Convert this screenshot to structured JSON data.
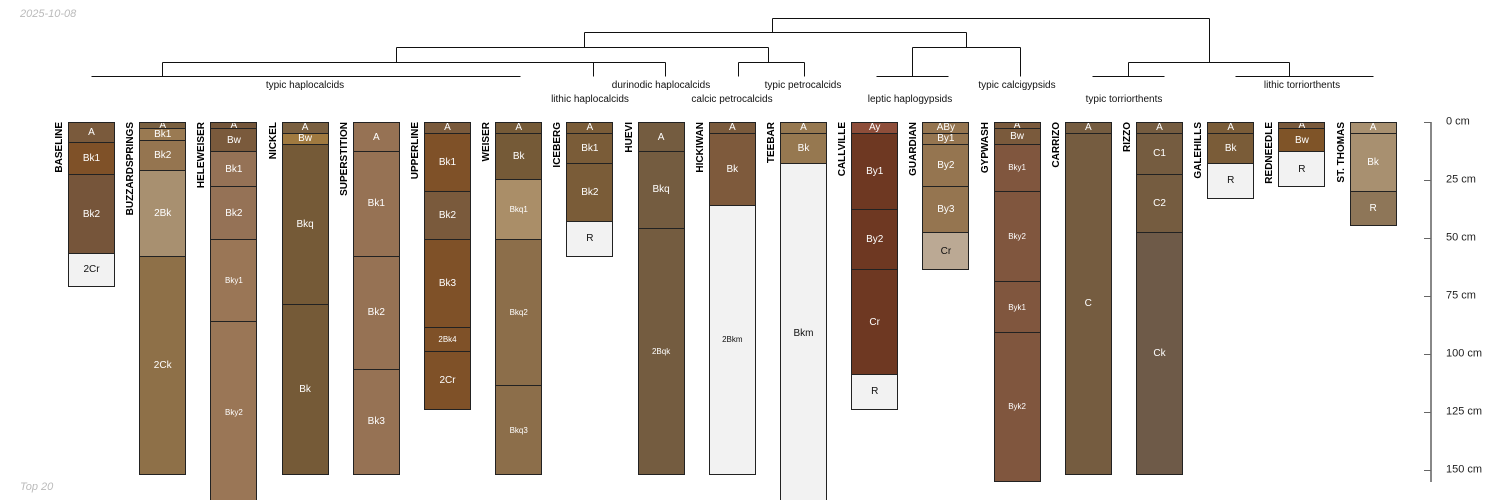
{
  "date": "2025-10-08",
  "footer": "Top 20",
  "taxa": [
    {
      "label": "typic haplocalcids",
      "row": 1,
      "cx": 305
    },
    {
      "label": "lithic haplocalcids",
      "row": 2,
      "cx": 590
    },
    {
      "label": "durinodic haplocalcids",
      "row": 1,
      "cx": 661
    },
    {
      "label": "calcic petrocalcids",
      "row": 2,
      "cx": 732
    },
    {
      "label": "typic petrocalcids",
      "row": 1,
      "cx": 803
    },
    {
      "label": "leptic haplogypsids",
      "row": 2,
      "cx": 910
    },
    {
      "label": "typic calcigypsids",
      "row": 1,
      "cx": 1017
    },
    {
      "label": "typic torriorthents",
      "row": 2,
      "cx": 1124
    },
    {
      "label": "lithic torriorthents",
      "row": 1,
      "cx": 1302
    }
  ],
  "depth_axis": {
    "unit": "cm",
    "ticks": [
      0,
      25,
      50,
      75,
      100,
      125,
      150
    ]
  },
  "profiles": [
    {
      "name": "BASELINE",
      "horizons": [
        [
          "A",
          0,
          9,
          "#7a5a3c"
        ],
        [
          "Bk1",
          9,
          23,
          "#7f5128"
        ],
        [
          "Bk2",
          23,
          57,
          "#76553a"
        ],
        [
          "2Cr",
          57,
          71,
          "#f2f2f2"
        ]
      ]
    },
    {
      "name": "BUZZARDSPRINGS",
      "horizons": [
        [
          "A",
          0,
          3,
          "#7a6040"
        ],
        [
          "Bk1",
          3,
          8,
          "#9a7a52"
        ],
        [
          "Bk2",
          8,
          21,
          "#957550"
        ],
        [
          "2Bk",
          21,
          58,
          "#a89070"
        ],
        [
          "2Ck",
          58,
          152,
          "#8e7048"
        ]
      ]
    },
    {
      "name": "HELEWEISER",
      "horizons": [
        [
          "A",
          0,
          3,
          "#74563a"
        ],
        [
          "Bw",
          3,
          13,
          "#7a5a3c"
        ],
        [
          "Bk1",
          13,
          28,
          "#957256"
        ],
        [
          "Bk2",
          28,
          51,
          "#957256"
        ],
        [
          "Bky1",
          51,
          86,
          "#9a7656"
        ],
        [
          "Bky2",
          86,
          165,
          "#9a7656"
        ]
      ]
    },
    {
      "name": "NICKEL",
      "horizons": [
        [
          "A",
          0,
          5,
          "#7a6040"
        ],
        [
          "Bw",
          5,
          10,
          "#a07a40"
        ],
        [
          "Bkq",
          10,
          79,
          "#755a37"
        ],
        [
          "Bk",
          79,
          152,
          "#755a37"
        ]
      ]
    },
    {
      "name": "SUPERSTITION",
      "horizons": [
        [
          "A",
          0,
          13,
          "#967254"
        ],
        [
          "Bk1",
          13,
          58,
          "#967254"
        ],
        [
          "Bk2",
          58,
          107,
          "#967254"
        ],
        [
          "Bk3",
          107,
          152,
          "#967254"
        ]
      ]
    },
    {
      "name": "UPPERLINE",
      "horizons": [
        [
          "A",
          0,
          5,
          "#7a5a3c"
        ],
        [
          "Bk1",
          5,
          30,
          "#7f5128"
        ],
        [
          "Bk2",
          30,
          51,
          "#7a5a3c"
        ],
        [
          "Bk3",
          51,
          89,
          "#7f5128"
        ],
        [
          "2Bk4",
          89,
          99,
          "#7f5128"
        ],
        [
          "2Cr",
          99,
          124,
          "#7f5128"
        ]
      ]
    },
    {
      "name": "WEISER",
      "horizons": [
        [
          "A",
          0,
          5,
          "#755a37"
        ],
        [
          "Bk",
          5,
          25,
          "#755a37"
        ],
        [
          "Bkq1",
          25,
          51,
          "#aa8e68"
        ],
        [
          "Bkq2",
          51,
          114,
          "#8c6e4a"
        ],
        [
          "Bkq3",
          114,
          152,
          "#8c6e4a"
        ]
      ]
    },
    {
      "name": "ICEBERG",
      "horizons": [
        [
          "A",
          0,
          5,
          "#7a5c38"
        ],
        [
          "Bk1",
          5,
          18,
          "#7a5c38"
        ],
        [
          "Bk2",
          18,
          43,
          "#7a5c38"
        ],
        [
          "R",
          43,
          58,
          "#f2f2f2"
        ]
      ]
    },
    {
      "name": "HUEVI",
      "horizons": [
        [
          "A",
          0,
          13,
          "#745c40"
        ],
        [
          "Bkq",
          13,
          46,
          "#745c40"
        ],
        [
          "2Bqk",
          46,
          152,
          "#745c40"
        ]
      ]
    },
    {
      "name": "HICKIWAN",
      "horizons": [
        [
          "A",
          0,
          5,
          "#7a5a3c"
        ],
        [
          "Bk",
          5,
          36,
          "#7e5a3c"
        ],
        [
          "2Bkm",
          36,
          152,
          "#f2f2f2"
        ]
      ]
    },
    {
      "name": "TEEBAR",
      "horizons": [
        [
          "A",
          0,
          5,
          "#967850"
        ],
        [
          "Bk",
          5,
          18,
          "#967850"
        ],
        [
          "Bkm",
          18,
          165,
          "#f2f2f2"
        ]
      ]
    },
    {
      "name": "CALLVILLE",
      "horizons": [
        [
          "Ay",
          0,
          5,
          "#8e4e3a"
        ],
        [
          "By1",
          5,
          38,
          "#6e3822"
        ],
        [
          "By2",
          38,
          64,
          "#6e3822"
        ],
        [
          "Cr",
          64,
          109,
          "#6e3822"
        ],
        [
          "R",
          109,
          124,
          "#f2f2f2"
        ]
      ]
    },
    {
      "name": "GUARDIAN",
      "horizons": [
        [
          "ABy",
          0,
          5,
          "#957550"
        ],
        [
          "By1",
          5,
          10,
          "#957550"
        ],
        [
          "By2",
          10,
          28,
          "#957550"
        ],
        [
          "By3",
          28,
          48,
          "#957550"
        ],
        [
          "Cr",
          48,
          64,
          "#bba994"
        ]
      ]
    },
    {
      "name": "GYPWASH",
      "horizons": [
        [
          "A",
          0,
          3,
          "#7a5a3c"
        ],
        [
          "Bw",
          3,
          10,
          "#7a5a3c"
        ],
        [
          "Bky1",
          10,
          30,
          "#80563e"
        ],
        [
          "Bky2",
          30,
          69,
          "#80563e"
        ],
        [
          "Byk1",
          69,
          91,
          "#80563e"
        ],
        [
          "Byk2",
          91,
          155,
          "#80563e"
        ]
      ]
    },
    {
      "name": "CARRIZO",
      "horizons": [
        [
          "A",
          0,
          5,
          "#755c40"
        ],
        [
          "C",
          5,
          152,
          "#755c40"
        ]
      ]
    },
    {
      "name": "RIZZO",
      "horizons": [
        [
          "A",
          0,
          5,
          "#755c40"
        ],
        [
          "C1",
          5,
          23,
          "#755c40"
        ],
        [
          "C2",
          23,
          48,
          "#755c40"
        ],
        [
          "Ck",
          48,
          152,
          "#6e5a48"
        ]
      ]
    },
    {
      "name": "GALEHILLS",
      "horizons": [
        [
          "A",
          0,
          5,
          "#7a5c38"
        ],
        [
          "Bk",
          5,
          18,
          "#7a5c38"
        ],
        [
          "R",
          18,
          33,
          "#f2f2f2"
        ]
      ]
    },
    {
      "name": "REDNEEDLE",
      "horizons": [
        [
          "A",
          0,
          3,
          "#7a5a3c"
        ],
        [
          "Bw",
          3,
          13,
          "#7f5428"
        ],
        [
          "R",
          13,
          28,
          "#f2f2f2"
        ]
      ]
    },
    {
      "name": "ST. THOMAS",
      "horizons": [
        [
          "A",
          0,
          5,
          "#a89070"
        ],
        [
          "Bk",
          5,
          30,
          "#a89070"
        ],
        [
          "R",
          30,
          45,
          "#8e7658"
        ]
      ]
    }
  ]
}
